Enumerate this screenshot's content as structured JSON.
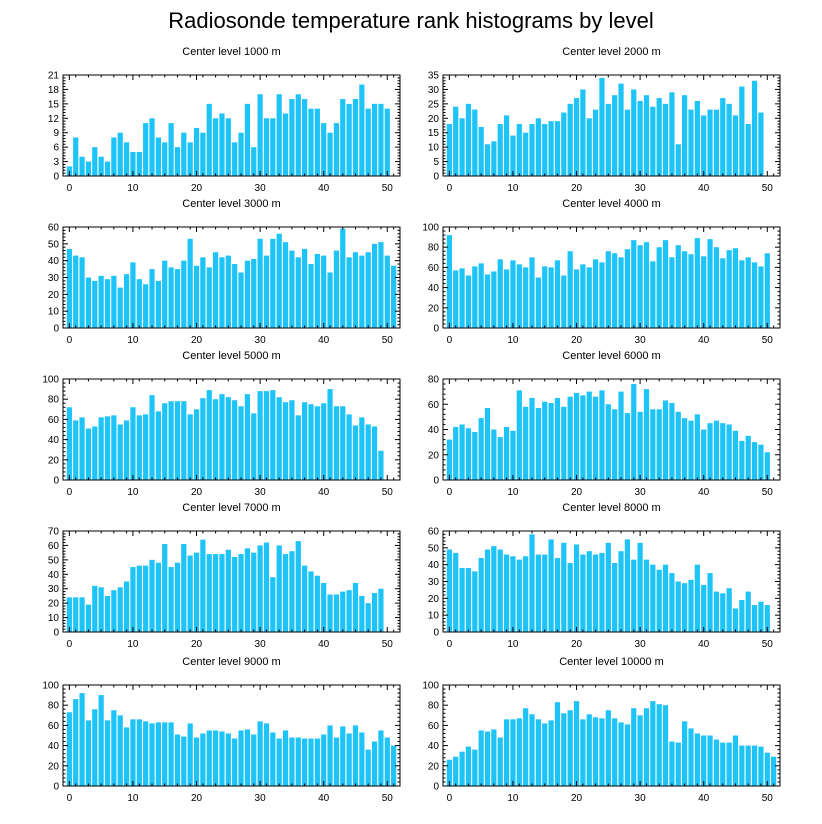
{
  "title": "Radiosonde temperature rank histograms by level",
  "bar_color": "#1ec3f8",
  "chart_data": [
    {
      "type": "bar",
      "title": "Center level 1000 m",
      "ylim": [
        0,
        21
      ],
      "yticks": [
        0,
        3,
        6,
        9,
        12,
        15,
        18,
        21
      ],
      "xlim": [
        -1,
        52
      ],
      "xticks": [
        0,
        10,
        20,
        30,
        40,
        50
      ],
      "values": [
        2,
        8,
        4,
        3,
        6,
        4,
        3,
        8,
        9,
        7,
        5,
        5,
        11,
        12,
        8,
        7,
        11,
        6,
        9,
        7,
        10,
        9,
        15,
        12,
        13,
        12,
        7,
        9,
        15,
        6,
        17,
        12,
        12,
        17,
        13,
        16,
        17,
        16,
        14,
        14,
        11,
        9,
        11,
        16,
        15,
        16,
        19,
        14,
        15,
        15,
        14
      ]
    },
    {
      "type": "bar",
      "title": "Center level 2000 m",
      "ylim": [
        0,
        35
      ],
      "yticks": [
        0,
        5,
        10,
        15,
        20,
        25,
        30,
        35
      ],
      "xlim": [
        -1,
        52
      ],
      "xticks": [
        0,
        10,
        20,
        30,
        40,
        50
      ],
      "values": [
        18,
        24,
        20,
        25,
        23,
        17,
        11,
        12,
        18,
        21,
        14,
        18,
        15,
        18,
        20,
        18,
        19,
        19,
        22,
        25,
        27,
        30,
        20,
        23,
        34,
        25,
        28,
        32,
        23,
        30,
        26,
        28,
        24,
        27,
        25,
        29,
        11,
        28,
        23,
        26,
        21,
        23,
        23,
        27,
        25,
        21,
        31,
        18,
        33,
        22
      ]
    },
    {
      "type": "bar",
      "title": "Center level 3000 m",
      "ylim": [
        0,
        60
      ],
      "yticks": [
        0,
        10,
        20,
        30,
        40,
        50,
        60
      ],
      "xlim": [
        -1,
        52
      ],
      "xticks": [
        0,
        10,
        20,
        30,
        40,
        50
      ],
      "values": [
        47,
        43,
        42,
        30,
        28,
        31,
        29,
        31,
        24,
        32,
        39,
        29,
        26,
        35,
        28,
        40,
        36,
        35,
        40,
        53,
        37,
        42,
        36,
        45,
        42,
        43,
        38,
        33,
        40,
        41,
        53,
        43,
        53,
        56,
        51,
        46,
        42,
        47,
        38,
        44,
        43,
        33,
        46,
        59,
        42,
        45,
        43,
        45,
        50,
        51,
        43,
        37
      ]
    },
    {
      "type": "bar",
      "title": "Center level 4000 m",
      "ylim": [
        0,
        100
      ],
      "yticks": [
        0,
        20,
        40,
        60,
        80,
        100
      ],
      "xlim": [
        -1,
        52
      ],
      "xticks": [
        0,
        10,
        20,
        30,
        40,
        50
      ],
      "values": [
        92,
        57,
        59,
        52,
        61,
        64,
        53,
        56,
        68,
        58,
        67,
        63,
        60,
        70,
        50,
        61,
        60,
        67,
        52,
        76,
        58,
        63,
        60,
        68,
        65,
        76,
        74,
        70,
        78,
        87,
        82,
        85,
        66,
        80,
        87,
        70,
        82,
        76,
        73,
        89,
        71,
        88,
        80,
        69,
        77,
        79,
        67,
        70,
        65,
        61,
        74
      ]
    },
    {
      "type": "bar",
      "title": "Center level 5000 m",
      "ylim": [
        0,
        100
      ],
      "yticks": [
        0,
        20,
        40,
        60,
        80,
        100
      ],
      "xlim": [
        -1,
        52
      ],
      "xticks": [
        0,
        10,
        20,
        30,
        40,
        50
      ],
      "values": [
        72,
        59,
        62,
        51,
        53,
        62,
        63,
        64,
        55,
        59,
        72,
        64,
        65,
        84,
        68,
        76,
        78,
        78,
        78,
        65,
        70,
        81,
        89,
        80,
        85,
        82,
        79,
        73,
        85,
        66,
        88,
        88,
        89,
        82,
        77,
        79,
        64,
        77,
        75,
        73,
        76,
        90,
        73,
        73,
        65,
        54,
        62,
        55,
        53,
        29
      ]
    },
    {
      "type": "bar",
      "title": "Center level 6000 m",
      "ylim": [
        0,
        80
      ],
      "yticks": [
        0,
        20,
        40,
        60,
        80
      ],
      "xlim": [
        -1,
        52
      ],
      "xticks": [
        0,
        10,
        20,
        30,
        40,
        50
      ],
      "values": [
        32,
        42,
        44,
        41,
        38,
        49,
        57,
        40,
        34,
        42,
        39,
        71,
        58,
        65,
        57,
        62,
        61,
        65,
        58,
        66,
        69,
        67,
        70,
        66,
        71,
        60,
        56,
        70,
        53,
        76,
        54,
        72,
        56,
        56,
        63,
        61,
        54,
        49,
        47,
        52,
        40,
        45,
        47,
        45,
        44,
        39,
        31,
        35,
        30,
        28,
        22
      ]
    },
    {
      "type": "bar",
      "title": "Center level 7000 m",
      "ylim": [
        0,
        70
      ],
      "yticks": [
        0,
        10,
        20,
        30,
        40,
        50,
        60,
        70
      ],
      "xlim": [
        -1,
        52
      ],
      "xticks": [
        0,
        10,
        20,
        30,
        40,
        50
      ],
      "values": [
        24,
        24,
        24,
        19,
        32,
        31,
        25,
        29,
        31,
        35,
        45,
        46,
        46,
        50,
        48,
        61,
        45,
        48,
        61,
        53,
        55,
        64,
        54,
        54,
        54,
        57,
        52,
        54,
        58,
        55,
        60,
        62,
        38,
        60,
        54,
        56,
        63,
        46,
        42,
        39,
        34,
        26,
        26,
        28,
        29,
        34,
        25,
        20,
        27,
        30
      ]
    },
    {
      "type": "bar",
      "title": "Center level 8000 m",
      "ylim": [
        0,
        60
      ],
      "yticks": [
        0,
        10,
        20,
        30,
        40,
        50,
        60
      ],
      "xlim": [
        -1,
        52
      ],
      "xticks": [
        0,
        10,
        20,
        30,
        40,
        50
      ],
      "values": [
        49,
        47,
        38,
        38,
        36,
        44,
        49,
        51,
        49,
        46,
        45,
        43,
        45,
        58,
        46,
        46,
        55,
        44,
        53,
        41,
        52,
        46,
        48,
        46,
        47,
        53,
        41,
        48,
        55,
        43,
        53,
        43,
        40,
        37,
        40,
        35,
        30,
        29,
        31,
        40,
        28,
        35,
        24,
        23,
        26,
        14,
        19,
        24,
        16,
        18,
        16
      ]
    },
    {
      "type": "bar",
      "title": "Center level 9000 m",
      "ylim": [
        0,
        100
      ],
      "yticks": [
        0,
        20,
        40,
        60,
        80,
        100
      ],
      "xlim": [
        -1,
        52
      ],
      "xticks": [
        0,
        10,
        20,
        30,
        40,
        50
      ],
      "values": [
        73,
        86,
        92,
        65,
        76,
        90,
        65,
        75,
        70,
        58,
        66,
        66,
        64,
        62,
        63,
        63,
        63,
        51,
        49,
        62,
        48,
        52,
        55,
        55,
        54,
        52,
        47,
        55,
        56,
        51,
        64,
        62,
        53,
        47,
        55,
        48,
        48,
        47,
        47,
        47,
        51,
        60,
        48,
        59,
        52,
        60,
        53,
        36,
        44,
        55,
        48,
        40
      ]
    },
    {
      "type": "bar",
      "title": "Center level 10000 m",
      "ylim": [
        0,
        100
      ],
      "yticks": [
        0,
        20,
        40,
        60,
        80,
        100
      ],
      "xlim": [
        -1,
        52
      ],
      "xticks": [
        0,
        10,
        20,
        30,
        40,
        50
      ],
      "values": [
        26,
        29,
        34,
        39,
        36,
        55,
        54,
        56,
        48,
        66,
        66,
        67,
        77,
        71,
        66,
        62,
        65,
        83,
        72,
        75,
        84,
        66,
        71,
        68,
        67,
        75,
        67,
        63,
        61,
        77,
        70,
        77,
        84,
        81,
        80,
        44,
        43,
        64,
        57,
        52,
        50,
        50,
        46,
        43,
        43,
        50,
        40,
        40,
        40,
        39,
        33,
        29
      ]
    }
  ]
}
